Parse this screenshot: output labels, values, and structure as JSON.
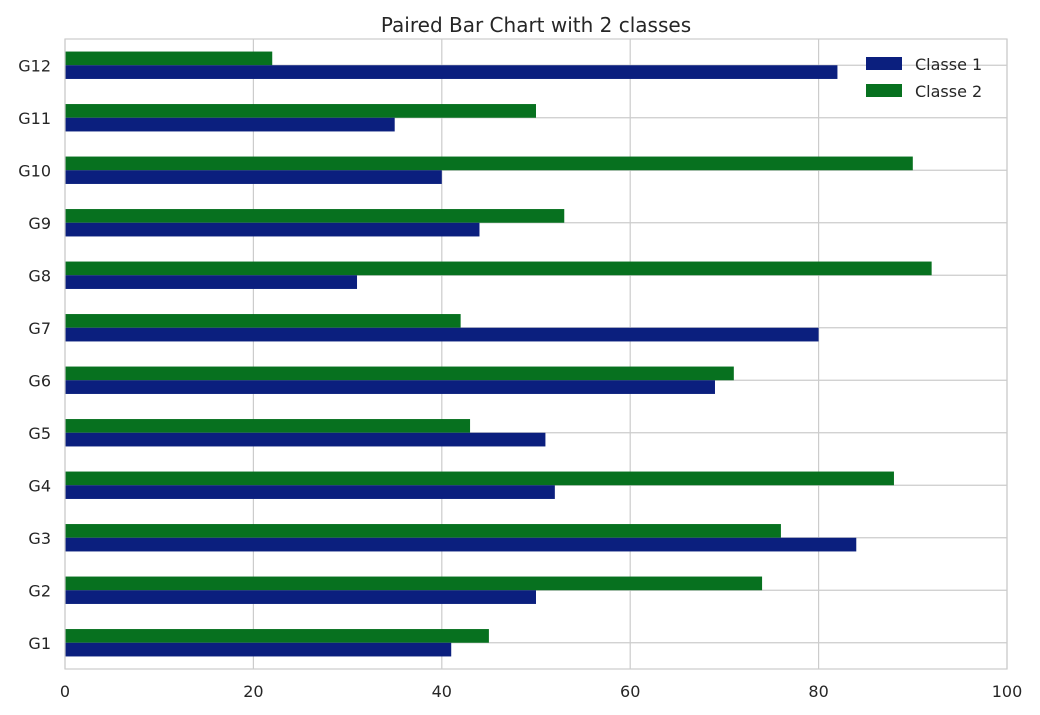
{
  "chart_data": {
    "type": "bar",
    "orientation": "horizontal",
    "title": "Paired Bar Chart with 2 classes",
    "xlabel": "",
    "ylabel": "",
    "xlim": [
      0,
      100
    ],
    "xticks": [
      "0",
      "20",
      "40",
      "60",
      "80",
      "100"
    ],
    "categories": [
      "G1",
      "G2",
      "G3",
      "G4",
      "G5",
      "G6",
      "G7",
      "G8",
      "G9",
      "G10",
      "G11",
      "G12"
    ],
    "series": [
      {
        "name": "Classe 1",
        "color": "#0b1f7e",
        "values": [
          41,
          50,
          84,
          52,
          51,
          69,
          80,
          31,
          44,
          40,
          35,
          82
        ]
      },
      {
        "name": "Classe 2",
        "color": "#07711f",
        "values": [
          45,
          74,
          76,
          88,
          43,
          71,
          42,
          92,
          53,
          90,
          50,
          22
        ]
      }
    ],
    "grid": true,
    "legend_position": "top-right"
  }
}
